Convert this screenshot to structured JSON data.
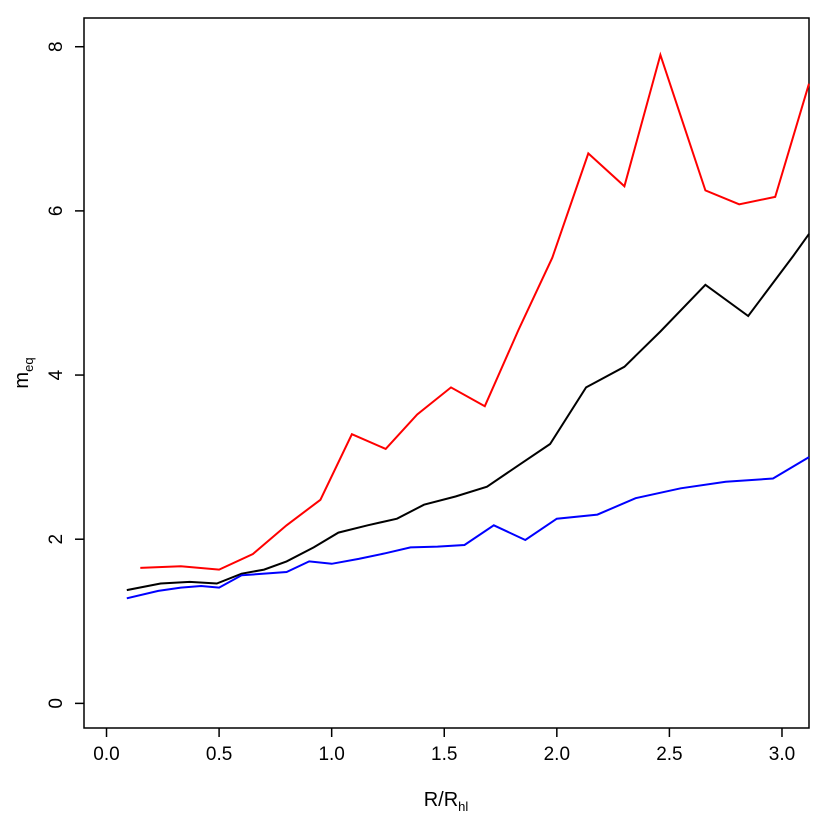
{
  "chart_data": {
    "type": "line",
    "xlabel": {
      "main": "R/R",
      "sub": "hl"
    },
    "ylabel": {
      "main": "m",
      "sub": "eq"
    },
    "xlim": [
      -0.1,
      3.12
    ],
    "ylim": [
      -0.3,
      8.35
    ],
    "x_ticks": [
      0.0,
      0.5,
      1.0,
      1.5,
      2.0,
      2.5,
      3.0
    ],
    "x_tick_labels": [
      "0.0",
      "0.5",
      "1.0",
      "1.5",
      "2.0",
      "2.5",
      "3.0"
    ],
    "y_ticks": [
      0,
      2,
      4,
      6,
      8
    ],
    "y_tick_labels": [
      "0",
      "2",
      "4",
      "6",
      "8"
    ],
    "grid": false,
    "series": [
      {
        "color": "#ff0000",
        "x": [
          0.15,
          0.33,
          0.5,
          0.65,
          0.8,
          0.95,
          1.09,
          1.24,
          1.38,
          1.53,
          1.68,
          1.83,
          1.98,
          2.14,
          2.3,
          2.46,
          2.66,
          2.81,
          2.97,
          3.12
        ],
        "y": [
          1.65,
          1.67,
          1.63,
          1.82,
          2.17,
          2.48,
          3.28,
          3.1,
          3.52,
          3.85,
          3.62,
          4.55,
          5.43,
          6.7,
          6.3,
          7.9,
          6.25,
          6.08,
          6.17,
          7.55
        ]
      },
      {
        "color": "#000000",
        "x": [
          0.09,
          0.24,
          0.37,
          0.49,
          0.6,
          0.7,
          0.8,
          0.92,
          1.03,
          1.16,
          1.29,
          1.41,
          1.55,
          1.69,
          1.83,
          1.97,
          2.13,
          2.3,
          2.46,
          2.66,
          2.85,
          3.05,
          3.12
        ],
        "y": [
          1.38,
          1.46,
          1.48,
          1.46,
          1.58,
          1.63,
          1.73,
          1.9,
          2.08,
          2.17,
          2.25,
          2.42,
          2.52,
          2.64,
          2.9,
          3.16,
          3.85,
          4.1,
          4.53,
          5.1,
          4.72,
          5.45,
          5.72
        ]
      },
      {
        "color": "#0000ff",
        "x": [
          0.09,
          0.23,
          0.33,
          0.42,
          0.5,
          0.6,
          0.8,
          0.9,
          1.0,
          1.12,
          1.24,
          1.35,
          1.47,
          1.59,
          1.72,
          1.86,
          2.0,
          2.18,
          2.35,
          2.55,
          2.75,
          2.96,
          3.12
        ],
        "y": [
          1.28,
          1.37,
          1.41,
          1.43,
          1.41,
          1.56,
          1.6,
          1.73,
          1.7,
          1.76,
          1.83,
          1.9,
          1.91,
          1.93,
          2.17,
          1.99,
          2.25,
          2.3,
          2.5,
          2.62,
          2.7,
          2.74,
          3.0
        ]
      }
    ]
  }
}
